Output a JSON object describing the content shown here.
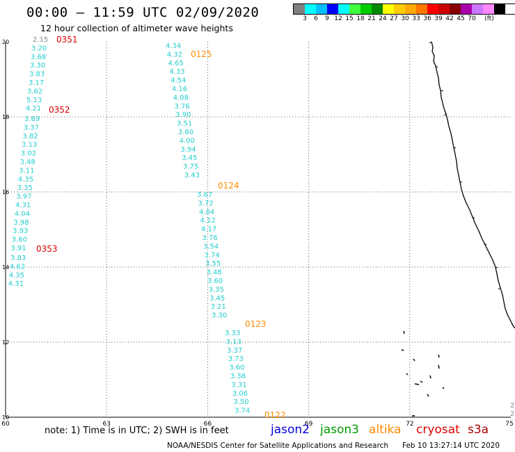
{
  "title": "00:00 – 11:59 UTC 02/09/2020",
  "subtitle": "12 hour collection of altimeter wave heights",
  "legend": {
    "colors": [
      "#808080",
      "#00ffff",
      "#00bfff",
      "#0000ff",
      "#00ffff",
      "#40ff40",
      "#00cc00",
      "#008800",
      "#ffff00",
      "#ffcc00",
      "#ffaa00",
      "#ff7700",
      "#ff0000",
      "#cc0000",
      "#880000",
      "#aa00aa",
      "#cc77ff",
      "#ff88ff",
      "#000000"
    ],
    "labels": [
      "3",
      "6",
      "9",
      "12",
      "15",
      "18",
      "21",
      "24",
      "27",
      "30",
      "33",
      "36",
      "39",
      "42",
      "45",
      "70",
      "(ft)"
    ]
  },
  "axes": {
    "x_ticks": [
      "60",
      "63",
      "66",
      "69",
      "72",
      "75"
    ],
    "y_ticks": [
      "10",
      "12",
      "14",
      "16",
      "18",
      "20"
    ],
    "x_range": [
      60,
      75
    ],
    "y_range": [
      10,
      20
    ]
  },
  "passes": [
    {
      "label": "0351",
      "color": "#dd0000",
      "values": [
        "2.15",
        "3.20",
        "3.68",
        "3.30",
        "3.83",
        "3.17",
        "3.62",
        "5.13",
        "4.21"
      ]
    },
    {
      "label": "0352",
      "color": "#dd0000",
      "values": [
        "3.69",
        "3.37",
        "3.82",
        "3.13",
        "3.02",
        "3.48",
        "3.11",
        "4.35",
        "3.35",
        "3.97",
        "4.31",
        "4.04",
        "3.98",
        "3.93",
        "3.60",
        "3.91"
      ]
    },
    {
      "label": "0353",
      "color": "#dd0000",
      "values": [
        "3.83",
        "4.62",
        "4.35",
        "4.31"
      ]
    },
    {
      "label": "0125",
      "color": "#ff8c00",
      "values": [
        "4.34",
        "4.32",
        "4.65",
        "4.33",
        "4.54",
        "4.16",
        "4.08",
        "3.76",
        "3.90",
        "3.51",
        "3.60",
        "4.00",
        "3.94",
        "3.45",
        "3.75",
        "3.43"
      ]
    },
    {
      "label": "0124",
      "color": "#ff8c00",
      "values": [
        "3.67",
        "3.72",
        "4.04",
        "4.12",
        "4.17",
        "3.76",
        "3.54",
        "3.74",
        "3.55",
        "3.48",
        "3.60",
        "3.35",
        "3.45",
        "3.21",
        "3.30"
      ]
    },
    {
      "label": "0123",
      "color": "#ff8c00",
      "values": [
        "3.33",
        "3.13",
        "3.37",
        "3.73",
        "3.60",
        "3.38",
        "3.31",
        "3.06",
        "3.50",
        "3.74"
      ]
    },
    {
      "label": "0122",
      "color": "#ff8c00",
      "values": []
    }
  ],
  "edge_values": [
    "2.",
    "2."
  ],
  "note": "note: 1) Time is in UTC; 2) SWH is in feet",
  "satellites": [
    {
      "name": "jason2",
      "color": "#0000dd"
    },
    {
      "name": "jason3",
      "color": "#009900"
    },
    {
      "name": "altika",
      "color": "#ff8c00"
    },
    {
      "name": "cryosat",
      "color": "#dd0000"
    },
    {
      "name": "s3a",
      "color": "#aa0000"
    }
  ],
  "credit": "NOAA/NESDIS Center for Satellite Applications and Research",
  "credit_time": "Feb 10 13:27:14 UTC 2020",
  "value_color": "#22cccc"
}
